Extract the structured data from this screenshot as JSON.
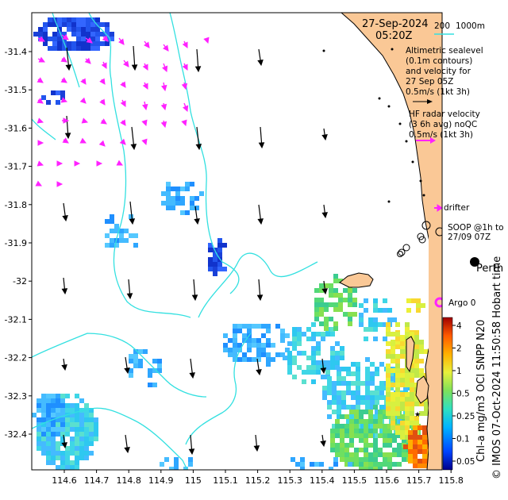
{
  "header": {
    "date": "27-Sep-2024",
    "time": "05:20Z",
    "isobath_200": "200",
    "isobath_1000": "1000m"
  },
  "legend": {
    "altimetry_lines": [
      "Altimetric sealevel",
      "(0.1m contours)",
      "and velocity for",
      "27 Sep 05Z",
      "0.5m/s (1kt 3h)"
    ],
    "radar_lines": [
      "HF radar velocity",
      "(3 6h avg) noQC",
      "0.5m/s (1kt 3h)"
    ],
    "drifter": "drifter",
    "soop_lines": [
      "SOOP @1h to",
      "27/09 07Z"
    ],
    "argo": "Argo 0",
    "city": "Perth"
  },
  "colorbar": {
    "label": "Chl-a mg/m3 OCI SNPP N20",
    "ticks": [
      "4",
      "2",
      "1",
      "0.5",
      "0.25",
      "0.1",
      "0.05"
    ]
  },
  "credit": "© IMOS 07-Oct-2024 11:50:58 Hobart time",
  "axes": {
    "lat_ticks": [
      "-31.4",
      "-31.5",
      "-31.6",
      "-31.7",
      "-31.8",
      "-31.9",
      "-32",
      "-32.1",
      "-32.2",
      "-32.3",
      "-32.4"
    ],
    "lon_ticks": [
      "114.6",
      "114.7",
      "114.8",
      "114.9",
      "115",
      "115.1",
      "115.2",
      "115.3",
      "115.4",
      "115.5",
      "115.6",
      "115.7",
      "115.8"
    ]
  },
  "colors": {
    "land": "#fac896",
    "isobath": "#33e0e0",
    "radar_arrow": "#ff22ff",
    "alt_arrow": "#000000",
    "argo": "#ff22ff"
  }
}
